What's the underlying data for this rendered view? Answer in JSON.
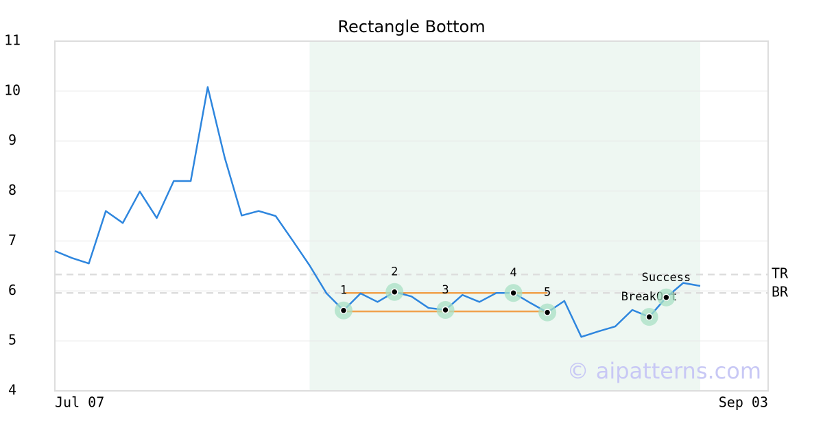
{
  "chart_data": {
    "type": "line",
    "title": "Rectangle Bottom",
    "x": [
      0,
      1,
      2,
      3,
      4,
      5,
      6,
      7,
      8,
      9,
      10,
      11,
      12,
      13,
      14,
      15,
      16,
      17,
      18,
      19,
      20,
      21,
      22,
      23,
      24,
      25,
      26,
      27,
      28,
      29,
      30,
      31,
      32,
      33,
      34,
      35,
      36,
      37,
      38
    ],
    "xlim": [
      0,
      42
    ],
    "xticks": [
      {
        "value": 0,
        "label": "Jul 07"
      },
      {
        "value": 42,
        "label": "Sep 03"
      }
    ],
    "ylim": [
      4,
      11
    ],
    "yticks": [
      4,
      5,
      6,
      7,
      8,
      9,
      10,
      11
    ],
    "grid": true,
    "series": [
      {
        "color": "#2e86de",
        "values": [
          6.8,
          6.66,
          6.55,
          7.6,
          7.36,
          7.99,
          7.46,
          8.2,
          8.2,
          10.08,
          8.67,
          7.51,
          7.6,
          7.5,
          7.01,
          6.51,
          5.95,
          5.61,
          5.95,
          5.78,
          5.98,
          5.89,
          5.66,
          5.62,
          5.92,
          5.78,
          5.96,
          5.96,
          5.76,
          5.57,
          5.8,
          5.08,
          5.19,
          5.29,
          5.62,
          5.48,
          5.87,
          6.16,
          6.1
        ]
      }
    ],
    "highlight_x": [
      15,
      38
    ],
    "reference_lines": [
      {
        "label": "TR",
        "value": 6.33
      },
      {
        "label": "BR",
        "value": 5.96
      }
    ],
    "rectangle_lines": [
      {
        "x": [
          17,
          29
        ],
        "value": 5.96,
        "color": "#f0a04b"
      },
      {
        "x": [
          17,
          29
        ],
        "value": 5.59,
        "color": "#f0a04b"
      }
    ],
    "points": [
      {
        "label": "1",
        "x": 17,
        "y": 5.61
      },
      {
        "label": "2",
        "x": 20,
        "y": 5.98
      },
      {
        "label": "3",
        "x": 23,
        "y": 5.62
      },
      {
        "label": "4",
        "x": 27,
        "y": 5.96
      },
      {
        "label": "5",
        "x": 29,
        "y": 5.57
      },
      {
        "label": "BreakOut",
        "x": 35,
        "y": 5.48
      },
      {
        "label": "Success",
        "x": 36,
        "y": 5.87
      }
    ],
    "watermark": "© aipatterns.com"
  }
}
